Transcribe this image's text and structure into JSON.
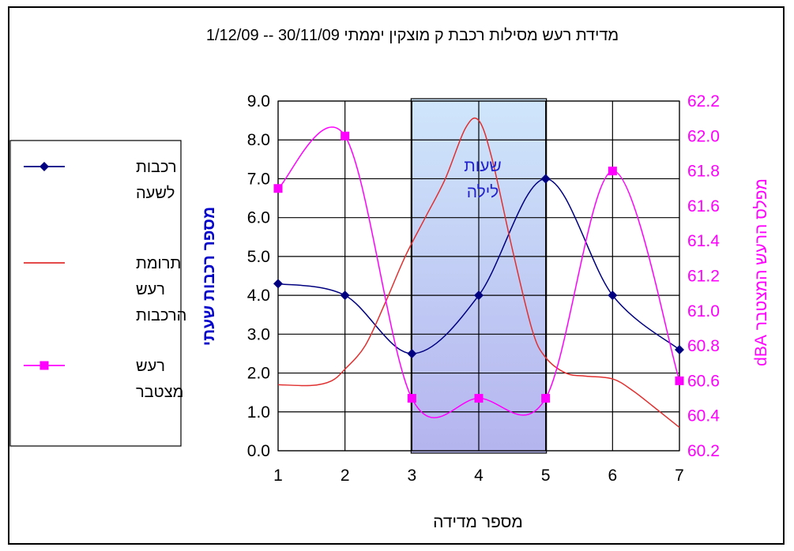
{
  "chart_data": {
    "type": "line",
    "title": "מדידת רעש מסילות רכבת ק מוצקין  יממתי  30/11/09 -- 1/12/09",
    "xlabel": "מספר מדידה",
    "ylabel": "מספר רכבות שעתי",
    "y2label": "מפלס הרעש המצטבר  dBA",
    "x": [
      1,
      2,
      3,
      4,
      5,
      6,
      7
    ],
    "xlim": [
      1,
      7
    ],
    "ylim": [
      0,
      9
    ],
    "y2lim": [
      60.2,
      62.2
    ],
    "yticks": [
      "0.0",
      "1.0",
      "2.0",
      "3.0",
      "4.0",
      "5.0",
      "6.0",
      "7.0",
      "8.0",
      "9.0"
    ],
    "y2ticks": [
      "60.2",
      "60.4",
      "60.6",
      "60.8",
      "61.0",
      "61.2",
      "61.4",
      "61.6",
      "61.8",
      "62.0",
      "62.2"
    ],
    "xticks": [
      "1",
      "2",
      "3",
      "4",
      "5",
      "6",
      "7"
    ],
    "grid": true,
    "legend_position": "left",
    "annotation": {
      "label": "שעות\nלילה",
      "x_range": [
        3,
        5
      ],
      "color": "#2222cc"
    },
    "series": [
      {
        "name": "רכבות לשעה",
        "axis": "left",
        "marker": "diamond",
        "color": "#000080",
        "smooth": true,
        "values": [
          4.3,
          4.0,
          2.5,
          4.0,
          7.0,
          4.0,
          2.6
        ]
      },
      {
        "name": "תרומת רעש הרכבות",
        "axis": "left",
        "marker": "none",
        "color": "#e03030",
        "smooth": false,
        "points": [
          [
            1,
            1.7
          ],
          [
            1.5,
            1.68
          ],
          [
            1.8,
            1.8
          ],
          [
            2.0,
            2.1
          ],
          [
            2.3,
            2.7
          ],
          [
            2.6,
            3.8
          ],
          [
            2.9,
            5.0
          ],
          [
            3.2,
            6.0
          ],
          [
            3.5,
            7.0
          ],
          [
            3.8,
            8.3
          ],
          [
            4.0,
            8.5
          ],
          [
            4.2,
            7.5
          ],
          [
            4.5,
            5.2
          ],
          [
            4.8,
            3.1
          ],
          [
            5.0,
            2.4
          ],
          [
            5.3,
            2.0
          ],
          [
            5.6,
            1.92
          ],
          [
            6.0,
            1.85
          ],
          [
            6.3,
            1.55
          ],
          [
            6.6,
            1.15
          ],
          [
            7.0,
            0.6
          ]
        ]
      },
      {
        "name": "רעש מצטבר",
        "axis": "right",
        "marker": "square",
        "color": "#ff00ff",
        "smooth": true,
        "values": [
          61.7,
          62.0,
          60.5,
          60.5,
          60.5,
          61.8,
          60.6
        ]
      }
    ]
  },
  "colors": {
    "left_axis_label": "#0000cc",
    "right_axis": "#ff00ff",
    "night_fill_top": "#cfe6fb",
    "night_fill_bottom": "#b4b4ee"
  }
}
